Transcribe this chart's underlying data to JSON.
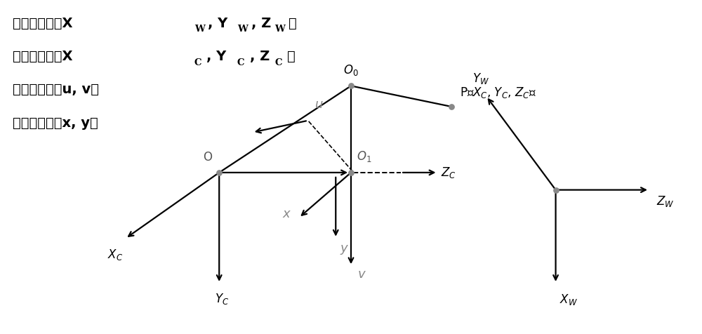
{
  "background_color": "#ffffff",
  "arrow_color": "#000000",
  "gray_color": "#888888",
  "dark_gray": "#555555",
  "legend_line1": "世界坐标系（X",
  "legend_line2": "相机坐标系（X",
  "legend_line3": "像素坐标系（u, v）",
  "legend_line4": "图像坐标系（x, y）"
}
